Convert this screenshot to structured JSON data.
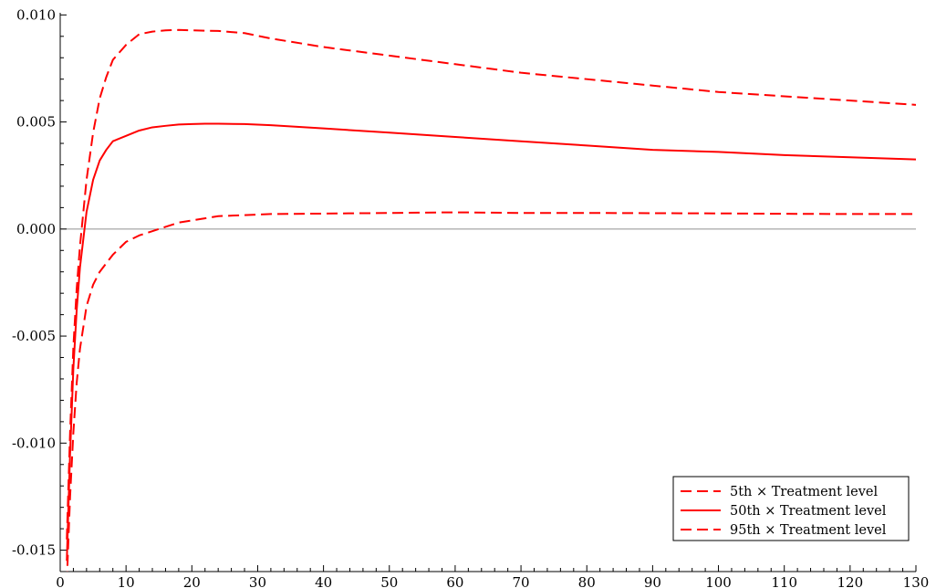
{
  "chart_data": {
    "type": "line",
    "title": "",
    "xlabel": "",
    "ylabel": "",
    "xlim": [
      0,
      130
    ],
    "ylim": [
      -0.016,
      0.0101
    ],
    "xticks": [
      0,
      10,
      20,
      30,
      40,
      50,
      60,
      70,
      80,
      90,
      100,
      110,
      120,
      130
    ],
    "xtick_labels": [
      "0",
      "10",
      "20",
      "30",
      "40",
      "50",
      "60",
      "70",
      "80",
      "90",
      "100",
      "110",
      "120",
      "130"
    ],
    "yticks": [
      -0.015,
      -0.01,
      -0.005,
      0.0,
      0.005,
      0.01
    ],
    "ytick_labels": [
      "-0.015",
      "-0.010",
      "-0.005",
      "0.000",
      "0.005",
      "0.010"
    ],
    "reference_line_y": 0,
    "grid": false,
    "legend_position": "bottom-right",
    "series": [
      {
        "name": "5th × Treatment level",
        "color": "#ff0000",
        "dash": "dashed",
        "x": [
          1,
          1.5,
          2,
          2.5,
          3,
          4,
          5,
          6,
          7,
          8,
          10,
          12,
          14,
          16,
          18,
          20,
          24,
          28,
          32,
          40,
          50,
          60,
          70,
          80,
          90,
          100,
          110,
          120,
          130
        ],
        "y": [
          -0.0145,
          -0.0095,
          -0.0055,
          -0.0028,
          -0.0008,
          0.0023,
          0.0045,
          0.0061,
          0.0071,
          0.0079,
          0.0086,
          0.0091,
          0.00922,
          0.00928,
          0.0093,
          0.00928,
          0.00925,
          0.00915,
          0.0089,
          0.0085,
          0.0081,
          0.0077,
          0.0073,
          0.007,
          0.0067,
          0.0064,
          0.0062,
          0.006,
          0.0058
        ]
      },
      {
        "name": "50th × Treatment level",
        "color": "#ff0000",
        "dash": "solid",
        "x": [
          1,
          1.5,
          2,
          2.5,
          3,
          4,
          5,
          6,
          7,
          8,
          10,
          12,
          14,
          16,
          18,
          20,
          22,
          24,
          28,
          32,
          40,
          50,
          60,
          70,
          80,
          90,
          100,
          110,
          120,
          130
        ],
        "y": [
          -0.0155,
          -0.0105,
          -0.0065,
          -0.0038,
          -0.0018,
          0.0008,
          0.0023,
          0.0032,
          0.0037,
          0.0041,
          0.00435,
          0.0046,
          0.00475,
          0.00482,
          0.00488,
          0.0049,
          0.00492,
          0.00492,
          0.0049,
          0.00485,
          0.0047,
          0.0045,
          0.0043,
          0.0041,
          0.0039,
          0.0037,
          0.0036,
          0.00345,
          0.00335,
          0.00325
        ]
      },
      {
        "name": "95th × Treatment level",
        "color": "#ff0000",
        "dash": "dashed",
        "x": [
          1,
          1.5,
          2,
          2.5,
          3,
          4,
          5,
          6,
          7,
          8,
          10,
          12,
          14,
          16,
          18,
          20,
          24,
          28,
          32,
          40,
          50,
          60,
          70,
          80,
          90,
          100,
          110,
          120,
          130
        ],
        "y": [
          -0.0165,
          -0.0125,
          -0.0095,
          -0.0072,
          -0.0056,
          -0.0036,
          -0.0026,
          -0.002,
          -0.0016,
          -0.0012,
          -0.0006,
          -0.0003,
          -0.0001,
          0.0001,
          0.0003,
          0.0004,
          0.0006,
          0.00065,
          0.0007,
          0.00072,
          0.00075,
          0.00078,
          0.00075,
          0.00075,
          0.00074,
          0.00073,
          0.00071,
          0.0007,
          0.0007
        ]
      }
    ]
  }
}
